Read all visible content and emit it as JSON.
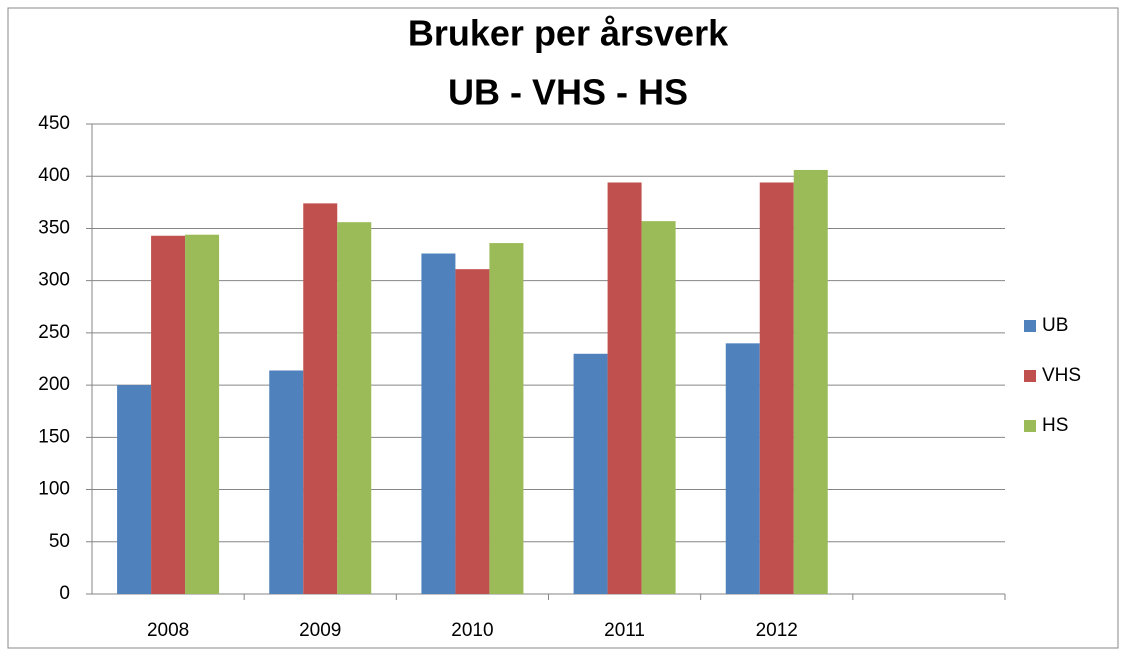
{
  "chart_data": {
    "type": "bar",
    "title": "Bruker per årsverk",
    "subtitle": "UB - VHS - HS",
    "categories": [
      "2008",
      "2009",
      "2010",
      "2011",
      "2012",
      null
    ],
    "series": [
      {
        "name": "UB",
        "color": "#4f81bd",
        "values": [
          200,
          214,
          326,
          230,
          240,
          null
        ]
      },
      {
        "name": "VHS",
        "color": "#c0504d",
        "values": [
          343,
          374,
          311,
          394,
          394,
          null
        ]
      },
      {
        "name": "HS",
        "color": "#9bbb59",
        "values": [
          344,
          356,
          336,
          357,
          406,
          null
        ]
      }
    ],
    "ylim": [
      0,
      450
    ],
    "yticks": [
      0,
      50,
      100,
      150,
      200,
      250,
      300,
      350,
      400,
      450
    ],
    "grid": true,
    "legend": "right"
  }
}
